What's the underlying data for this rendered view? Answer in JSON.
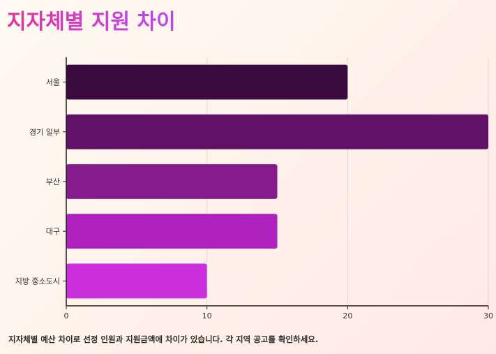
{
  "chart_data": {
    "type": "bar",
    "orientation": "horizontal",
    "title": "지자체별 지원 차이",
    "categories": [
      "서울",
      "경기 일부",
      "부산",
      "대구",
      "지방 중소도시"
    ],
    "values": [
      20,
      30,
      15,
      15,
      10
    ],
    "bar_colors": [
      "#3b0a3e",
      "#621266",
      "#861b8e",
      "#ae22bd",
      "#cc2fdc"
    ],
    "xlim": [
      0,
      30
    ],
    "xticks": [
      0,
      10,
      20,
      30
    ],
    "grid": "vertical",
    "xlabel": "",
    "ylabel": ""
  },
  "footnote": "지자체별 예산 차이로 선정 인원과 지원금액에 차이가 있습니다. 각 지역 공고를 확인하세요."
}
